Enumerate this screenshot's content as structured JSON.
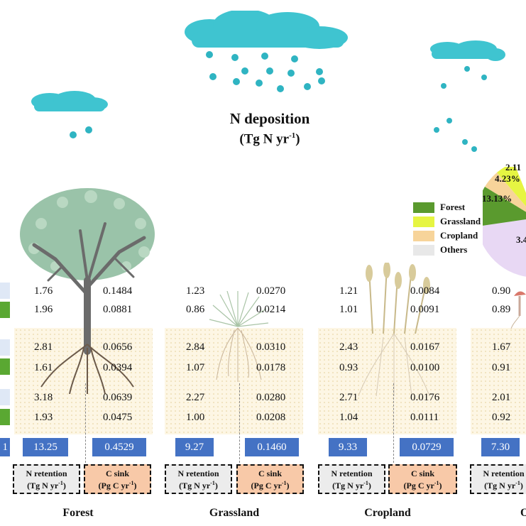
{
  "header": {
    "title": "N deposition",
    "unit_main": "(Tg N yr",
    "unit_sup": "-1",
    "unit_close": ")"
  },
  "legend": [
    {
      "label": "Forest",
      "color": "#5a9a2e"
    },
    {
      "label": "Grassland",
      "color": "#e6f542"
    },
    {
      "label": "Cropland",
      "color": "#f7d49a"
    },
    {
      "label": "Others",
      "color": "#e8e8e8"
    }
  ],
  "pie": {
    "pct_a": "2.11",
    "pct_b": "4.23%",
    "pct_c": "13.13%",
    "pct_d": "3.4"
  },
  "labels": {
    "n_retention": "N retention",
    "n_unit": "(Tg N yr",
    "c_sink": "C sink",
    "c_unit": "(Pg C yr",
    "sup": "-1",
    "close": ")"
  },
  "ecosystems": {
    "forest": {
      "name": "Forest",
      "n": [
        "1.76",
        "1.96",
        "2.81",
        "1.61",
        "3.18",
        "1.93"
      ],
      "c": [
        "0.1484",
        "0.0881",
        "0.0656",
        "0.0394",
        "0.0639",
        "0.0475"
      ],
      "n_total": "13.25",
      "c_total": "0.4529"
    },
    "grassland": {
      "name": "Grassland",
      "n": [
        "1.23",
        "0.86",
        "2.84",
        "1.07",
        "2.27",
        "1.00"
      ],
      "c": [
        "0.0270",
        "0.0214",
        "0.0310",
        "0.0178",
        "0.0280",
        "0.0208"
      ],
      "n_total": "9.27",
      "c_total": "0.1460"
    },
    "cropland": {
      "name": "Cropland",
      "n": [
        "1.21",
        "1.01",
        "2.43",
        "0.93",
        "2.71",
        "1.04"
      ],
      "c": [
        "0.0084",
        "0.0091",
        "0.0167",
        "0.0100",
        "0.0176",
        "0.0111"
      ],
      "n_total": "9.33",
      "c_total": "0.0729"
    },
    "others": {
      "name": "O",
      "n": [
        "0.90",
        "0.89",
        "1.67",
        "0.91",
        "2.01",
        "0.92"
      ],
      "n_total": "7.30"
    }
  },
  "left_edge": {
    "total": "1"
  },
  "colors": {
    "blue": "#4472c4",
    "green": "#5aa832",
    "lightblue": "#dfe8f6",
    "cloud": "#3cc3cf"
  }
}
